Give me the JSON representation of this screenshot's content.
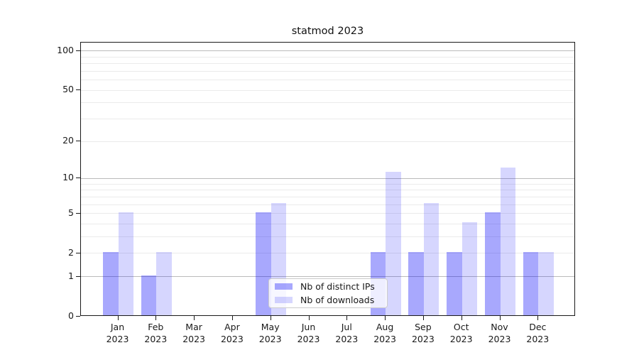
{
  "page": {
    "title": "statmod 2023"
  },
  "chart_data": {
    "type": "bar",
    "title": "statmod 2023",
    "categories": [
      "Jan 2023",
      "Feb 2023",
      "Mar 2023",
      "Apr 2023",
      "May 2023",
      "Jun 2023",
      "Jul 2023",
      "Aug 2023",
      "Sep 2023",
      "Oct 2023",
      "Nov 2023",
      "Dec 2023"
    ],
    "month_labels": [
      "Jan",
      "Feb",
      "Mar",
      "Apr",
      "May",
      "Jun",
      "Jul",
      "Aug",
      "Sep",
      "Oct",
      "Nov",
      "Dec"
    ],
    "year_label": "2023",
    "series": [
      {
        "name": "Nb of distinct IPs",
        "color": "rgba(0,0,250,0.34)",
        "values": [
          2,
          1,
          0,
          0,
          5,
          0,
          0,
          2,
          2,
          2,
          5,
          2
        ]
      },
      {
        "name": "Nb of downloads",
        "color": "rgba(0,0,250,0.16)",
        "values": [
          5,
          2,
          0,
          0,
          6,
          0,
          0,
          11,
          6,
          4,
          12,
          2
        ]
      }
    ],
    "xlabel": "",
    "ylabel": "",
    "y_scale": "log10(1+v)",
    "y_ticks": [
      0,
      1,
      2,
      5,
      10,
      20,
      50,
      100
    ],
    "y_major_gridlines": [
      1,
      10,
      100
    ],
    "y_minor_gridlines": [
      2,
      3,
      4,
      5,
      6,
      7,
      8,
      9,
      20,
      30,
      40,
      50,
      60,
      70,
      80,
      90
    ],
    "ylim": [
      0,
      116
    ],
    "grid": "horizontal",
    "legend_position": "lower center",
    "colors": {
      "major_grid": "#bbbbbb",
      "minor_grid": "#ebebeb",
      "spine": "#1a1a1a",
      "text": "#191919"
    }
  }
}
